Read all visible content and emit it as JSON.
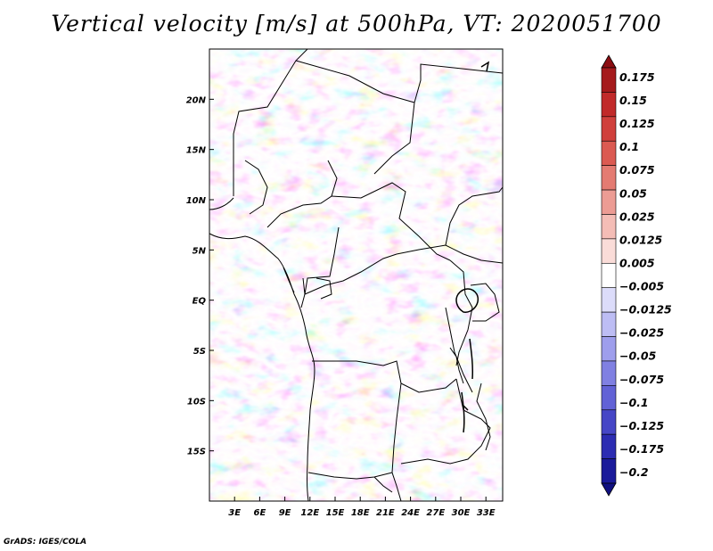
{
  "title": "Vertical velocity [m/s] at 500hPa, VT: 2020051700",
  "credit": "GrADS: IGES/COLA",
  "map": {
    "lat_ticks": [
      "20N",
      "15N",
      "10N",
      "5N",
      "EQ",
      "5S",
      "10S",
      "15S"
    ],
    "lon_ticks": [
      "3E",
      "6E",
      "9E",
      "12E",
      "15E",
      "18E",
      "21E",
      "24E",
      "27E",
      "30E",
      "33E"
    ],
    "extent": {
      "lon_min": 0,
      "lon_max": 35,
      "lat_min": -20,
      "lat_max": 25
    }
  },
  "colorbar": {
    "levels": [
      "0.175",
      "0.15",
      "0.125",
      "0.1",
      "0.075",
      "0.05",
      "0.025",
      "0.0125",
      "0.005",
      "−0.005",
      "−0.0125",
      "−0.025",
      "−0.05",
      "−0.075",
      "−0.1",
      "−0.125",
      "−0.175",
      "−0.2"
    ],
    "colors": [
      "#8b0e12",
      "#a51a1c",
      "#c12a2a",
      "#d0403c",
      "#db5a52",
      "#e47b72",
      "#ec9c94",
      "#f4bdb6",
      "#fadcd8",
      "#ffffff",
      "#dcdcfa",
      "#bdbdf4",
      "#9e9eec",
      "#8080e2",
      "#6262d6",
      "#4646c6",
      "#2c2cb2",
      "#1a1a9a",
      "#101080"
    ]
  }
}
